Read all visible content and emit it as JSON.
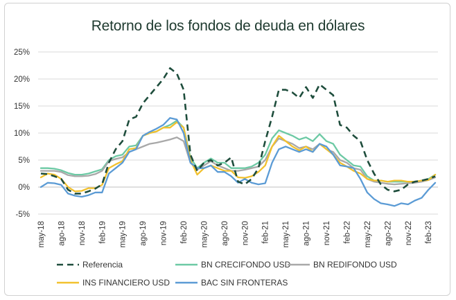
{
  "chart_data": {
    "type": "line",
    "title": "Retorno de los fondos de deuda en dólares",
    "xlabel": "",
    "ylabel": "",
    "ylim": [
      -5,
      25
    ],
    "yticks": [
      -5,
      0,
      5,
      10,
      15,
      20,
      25
    ],
    "ytick_labels": [
      "-5%",
      "0%",
      "5%",
      "10%",
      "15%",
      "20%",
      "25%"
    ],
    "grid": "horizontal",
    "legend_position": "bottom",
    "x": [
      "may-18",
      "jun-18",
      "jul-18",
      "ago-18",
      "sep-18",
      "oct-18",
      "nov-18",
      "dic-18",
      "ene-19",
      "feb-19",
      "mar-19",
      "abr-19",
      "may-19",
      "jun-19",
      "jul-19",
      "ago-19",
      "sep-19",
      "oct-19",
      "nov-19",
      "dic-19",
      "ene-20",
      "feb-20",
      "mar-20",
      "abr-20",
      "may-20",
      "jun-20",
      "jul-20",
      "ago-20",
      "sep-20",
      "oct-20",
      "nov-20",
      "dic-20",
      "ene-21",
      "feb-21",
      "mar-21",
      "abr-21",
      "may-21",
      "jun-21",
      "jul-21",
      "ago-21",
      "sep-21",
      "oct-21",
      "nov-21",
      "dic-21",
      "ene-22",
      "feb-22",
      "mar-22",
      "abr-22",
      "may-22",
      "jun-22",
      "jul-22",
      "ago-22",
      "sep-22",
      "oct-22",
      "nov-22",
      "dic-22",
      "ene-23",
      "feb-23",
      "mar-23"
    ],
    "x_tick_labels": [
      "may-18",
      "ago-18",
      "nov-18",
      "feb-19",
      "may-19",
      "ago-19",
      "nov-19",
      "feb-20",
      "may-20",
      "ago-20",
      "nov-20",
      "feb-21",
      "may-21",
      "ago-21",
      "nov-21",
      "feb-22",
      "may-22",
      "ago-22",
      "nov-22",
      "feb-23"
    ],
    "series": [
      {
        "name": "Referencia",
        "color": "#1e4d3c",
        "dashed": true,
        "values": [
          2.5,
          2.4,
          2.0,
          1.5,
          -0.5,
          -1.2,
          -1.2,
          -0.8,
          -0.3,
          0.5,
          4.5,
          7.0,
          8.5,
          12.5,
          13.0,
          15.5,
          17.0,
          18.5,
          20.0,
          22.0,
          21.0,
          18.0,
          6.0,
          3.0,
          4.5,
          5.0,
          4.0,
          4.5,
          5.5,
          1.0,
          0.5,
          1.5,
          3.5,
          8.5,
          13.0,
          18.0,
          18.0,
          17.5,
          16.5,
          18.5,
          16.5,
          19.0,
          18.0,
          17.0,
          11.5,
          11.0,
          9.5,
          8.5,
          5.0,
          2.5,
          0.5,
          -0.5,
          -0.8,
          -0.5,
          0.5,
          1.0,
          1.2,
          1.5,
          2.0
        ]
      },
      {
        "name": "BN CRECIFONDO USD",
        "color": "#6cc9a4",
        "dashed": false,
        "values": [
          3.5,
          3.5,
          3.4,
          3.1,
          2.6,
          2.3,
          2.3,
          2.5,
          2.9,
          3.3,
          5.0,
          5.7,
          6.0,
          7.5,
          7.7,
          9.5,
          10.0,
          10.3,
          11.0,
          11.5,
          12.3,
          11.0,
          5.5,
          3.5,
          4.5,
          5.3,
          4.5,
          4.5,
          3.5,
          3.5,
          3.5,
          3.8,
          4.5,
          6.0,
          9.0,
          10.5,
          10.0,
          9.5,
          8.8,
          9.2,
          8.5,
          9.8,
          8.5,
          8.0,
          6.0,
          5.0,
          4.0,
          3.8,
          2.0,
          1.2,
          1.2,
          1.0,
          1.0,
          1.0,
          1.0,
          1.0,
          1.2,
          1.5,
          2.3
        ]
      },
      {
        "name": "BN REDIFONDO USD",
        "color": "#a8a8a8",
        "dashed": false,
        "values": [
          3.0,
          3.0,
          3.0,
          2.8,
          2.2,
          2.0,
          2.0,
          2.1,
          2.4,
          3.0,
          4.8,
          5.2,
          5.5,
          6.5,
          7.0,
          7.5,
          8.0,
          8.2,
          8.5,
          8.8,
          9.2,
          8.5,
          4.5,
          3.2,
          4.0,
          4.8,
          4.0,
          3.5,
          3.0,
          3.0,
          3.2,
          3.5,
          3.8,
          5.0,
          7.5,
          9.0,
          8.5,
          8.0,
          7.2,
          7.5,
          7.0,
          8.0,
          7.0,
          6.5,
          5.0,
          4.5,
          3.5,
          3.2,
          1.5,
          1.0,
          0.8,
          0.6,
          0.5,
          0.6,
          0.7,
          0.8,
          1.0,
          1.3,
          1.8
        ]
      },
      {
        "name": "INS FINANCIERO USD",
        "color": "#f2c12e",
        "dashed": false,
        "values": [
          1.8,
          2.5,
          2.3,
          1.5,
          0.0,
          -0.8,
          -0.7,
          -0.2,
          -0.2,
          0.4,
          3.5,
          4.2,
          4.8,
          7.0,
          7.2,
          9.5,
          10.0,
          10.3,
          11.0,
          11.0,
          12.0,
          11.0,
          5.0,
          2.3,
          3.5,
          4.0,
          3.5,
          3.0,
          3.0,
          1.8,
          1.7,
          2.0,
          2.8,
          4.0,
          7.5,
          9.5,
          8.5,
          7.5,
          6.8,
          7.5,
          6.5,
          8.0,
          7.0,
          6.0,
          4.5,
          3.8,
          3.0,
          2.5,
          1.5,
          1.2,
          1.2,
          1.0,
          1.2,
          1.2,
          1.0,
          1.0,
          1.2,
          1.3,
          2.3
        ]
      },
      {
        "name": "BAC SIN FRONTERAS",
        "color": "#5b9bd5",
        "dashed": false,
        "values": [
          0.0,
          0.8,
          0.7,
          0.4,
          -1.2,
          -1.6,
          -1.8,
          -1.5,
          -1.0,
          -1.0,
          2.5,
          3.5,
          4.5,
          6.5,
          7.0,
          9.5,
          10.2,
          10.8,
          11.5,
          12.8,
          12.5,
          10.0,
          4.5,
          3.5,
          3.5,
          4.0,
          2.8,
          2.8,
          2.0,
          0.8,
          1.5,
          0.8,
          0.5,
          0.7,
          4.5,
          7.0,
          7.5,
          7.0,
          6.5,
          7.0,
          6.5,
          8.0,
          7.5,
          6.0,
          4.0,
          3.8,
          3.5,
          1.5,
          -1.0,
          -2.2,
          -3.0,
          -3.2,
          -3.5,
          -3.0,
          -3.2,
          -2.5,
          -2.0,
          -0.5,
          0.8
        ]
      }
    ]
  }
}
